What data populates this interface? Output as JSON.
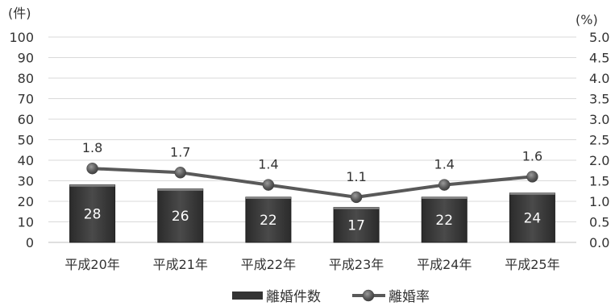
{
  "chart_data": {
    "type": "bar",
    "categories": [
      "平成20年",
      "平成21年",
      "平成22年",
      "平成23年",
      "平成24年",
      "平成25年"
    ],
    "series": [
      {
        "name": "離婚件数",
        "type": "bar",
        "axis": "left",
        "values": [
          28,
          26,
          22,
          17,
          22,
          24
        ],
        "color": "#404040"
      },
      {
        "name": "離婚率",
        "type": "line",
        "axis": "right",
        "values": [
          1.8,
          1.7,
          1.4,
          1.1,
          1.4,
          1.6
        ],
        "labels": [
          "1.8",
          "1.7",
          "1.4",
          "1.1",
          "1.4",
          "1.6"
        ],
        "color": "#595959"
      }
    ],
    "y_left": {
      "unit_label": "(件)",
      "ylim": [
        0,
        100
      ],
      "ticks": [
        "0",
        "10",
        "20",
        "30",
        "40",
        "50",
        "60",
        "70",
        "80",
        "90",
        "100"
      ]
    },
    "y_right": {
      "unit_label": "(%)",
      "ylim": [
        0,
        5
      ],
      "ticks": [
        "0.0",
        "0.5",
        "1.0",
        "1.5",
        "2.0",
        "2.5",
        "3.0",
        "3.5",
        "4.0",
        "4.5",
        "5.0"
      ]
    },
    "grid": true,
    "legend_position": "bottom-center"
  }
}
